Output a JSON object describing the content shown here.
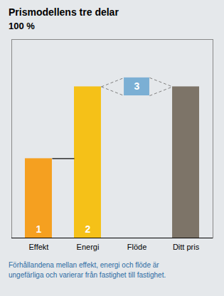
{
  "chart_data": {
    "type": "bar",
    "title": "Prismodellens tre delar",
    "subtitle": "100 %",
    "categories": [
      "Effekt",
      "Energi",
      "Flöde",
      "Ditt pris"
    ],
    "values": [
      0.42,
      0.8,
      0.0,
      0.8
    ],
    "colors": [
      "#f5a020",
      "#f5c118",
      null,
      "#7d7468"
    ],
    "bar_numbers": [
      "1",
      "2",
      null,
      null
    ],
    "step_line": [
      "Effekt",
      "Energi"
    ],
    "connector": {
      "label": "3",
      "color": "#7bafd4",
      "between": [
        "Energi",
        "Ditt pris"
      ],
      "at": "Flöde"
    },
    "footnote": [
      "Förhållandena mellan effekt, energi och flöde är",
      "ungefärliga och varierar från fastighet till fastighet."
    ],
    "footnote_color": "#2e6da4",
    "background_color": "#e5e8eb",
    "ylim": [
      0,
      1.05
    ],
    "yticks": [],
    "tick_labels": "x",
    "grid": false
  }
}
